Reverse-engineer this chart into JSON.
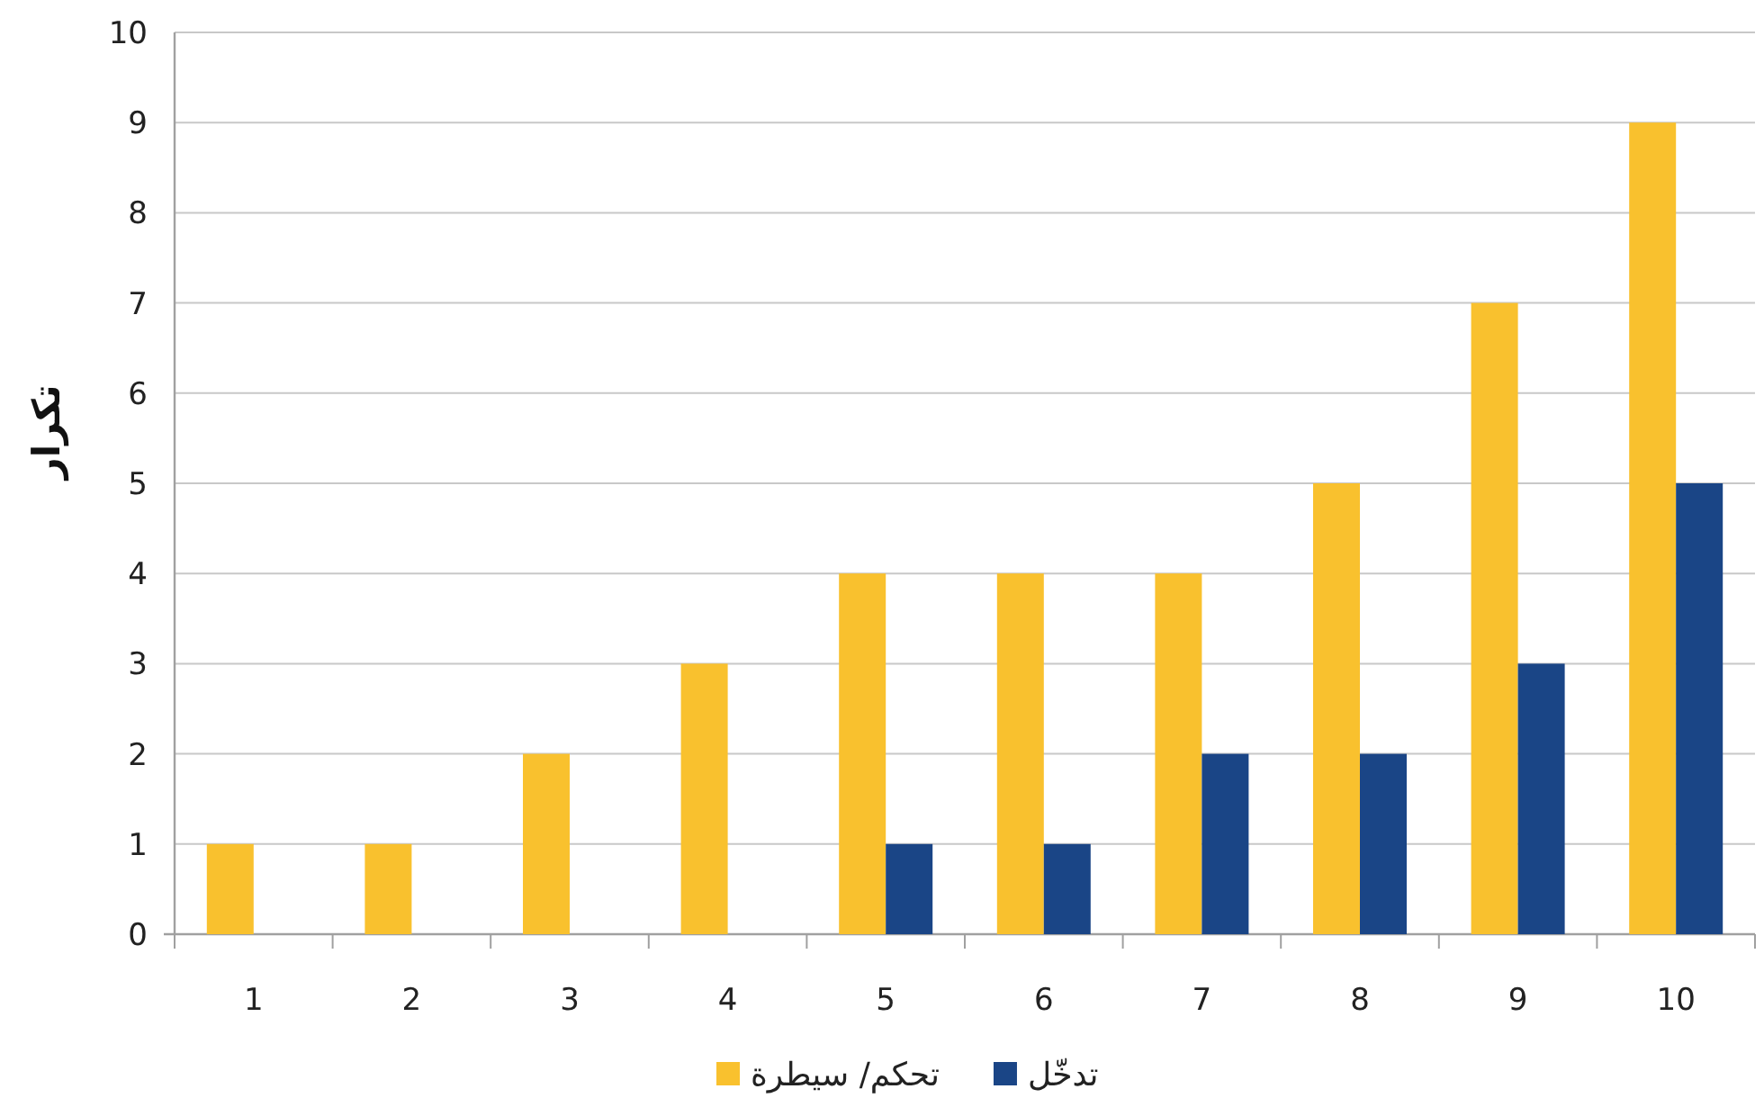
{
  "chart_data": {
    "type": "bar",
    "ylabel": "تكرار",
    "categories": [
      "1",
      "2",
      "3",
      "4",
      "5",
      "6",
      "7",
      "8",
      "9",
      "10"
    ],
    "series": [
      {
        "name": "تحكم/ سيطرة",
        "color": "#f9c12e",
        "values": [
          1,
          1,
          2,
          3,
          4,
          4,
          4,
          5,
          7,
          9
        ]
      },
      {
        "name": "تدخّل",
        "color": "#1a4586",
        "values": [
          0,
          0,
          0,
          0,
          1,
          1,
          2,
          2,
          3,
          5
        ]
      }
    ],
    "ylim": [
      0,
      10
    ],
    "yticks": [
      0,
      1,
      2,
      3,
      4,
      5,
      6,
      7,
      8,
      9,
      10
    ],
    "grid": "y",
    "legend": "bottom"
  }
}
